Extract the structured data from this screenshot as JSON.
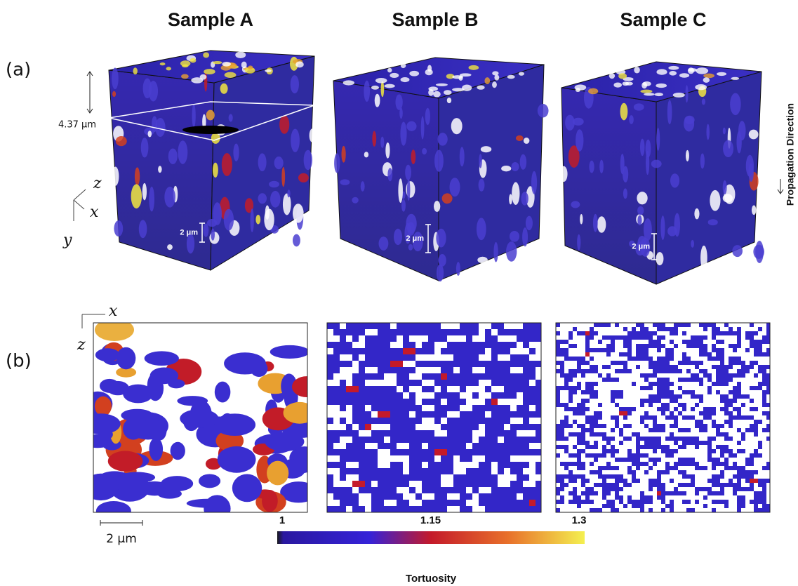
{
  "columns": [
    "Sample A",
    "Sample B",
    "Sample C"
  ],
  "panel_a": {
    "label": "(a)",
    "thickness_label": "4.37 μm",
    "axes": [
      "z",
      "x",
      "y"
    ],
    "scale_bars": [
      "2 μm",
      "2 μm",
      "2 μm"
    ],
    "side_label": "Propagation Direction"
  },
  "panel_b": {
    "label": "(b)",
    "axes": [
      "x",
      "z"
    ],
    "scale_bar": "2 μm"
  },
  "colorbar": {
    "ticks": [
      1,
      1.15,
      1.3
    ],
    "title": "Tortuosity"
  }
}
